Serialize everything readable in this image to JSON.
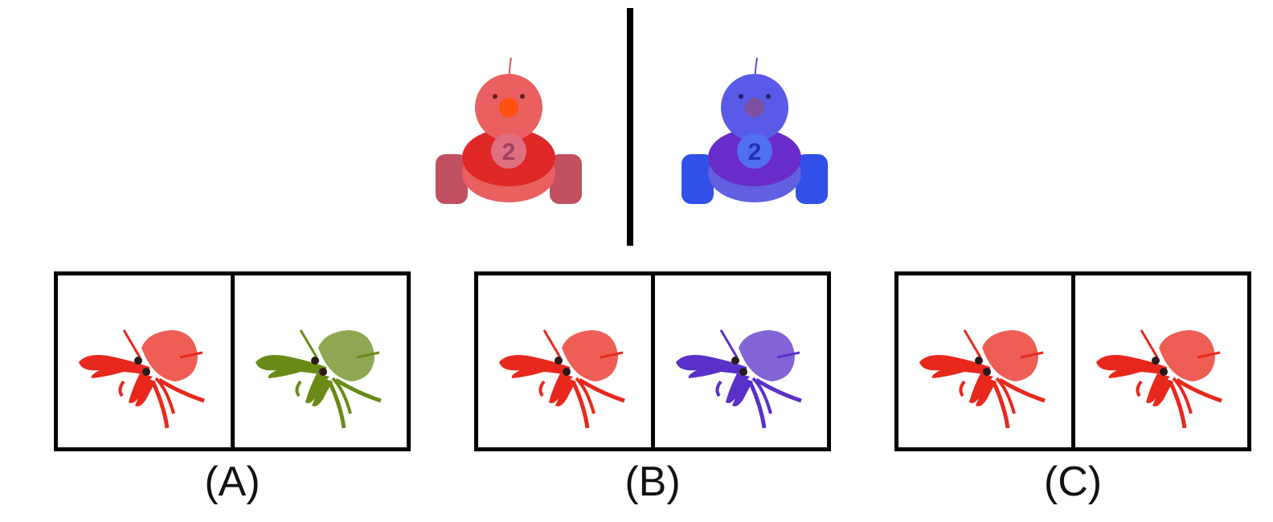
{
  "reference_pair": {
    "left_toy": {
      "color": "#e83a3a",
      "number": "2"
    },
    "right_toy": {
      "color": "#4a4ae0",
      "number": "2"
    }
  },
  "options": [
    {
      "label": "(A)",
      "left_crab_color": "#e8281c",
      "right_crab_color": "#5a8a1a"
    },
    {
      "label": "(B)",
      "left_crab_color": "#e8281c",
      "right_crab_color": "#5a30c8"
    },
    {
      "label": "(C)",
      "left_crab_color": "#e8281c",
      "right_crab_color": "#e8281c"
    }
  ]
}
